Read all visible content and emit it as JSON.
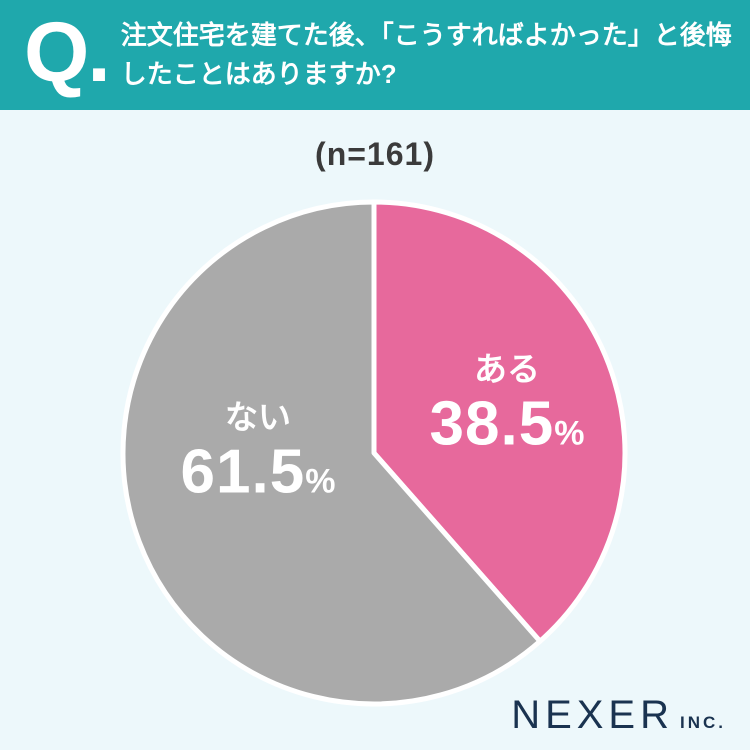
{
  "header": {
    "q_label": "Q.",
    "question_line1": "注文住宅を建てた後、「こうすればよかった」と後悔",
    "question_line2": "したことはありますか?"
  },
  "sample_label": "(n=161)",
  "chart_data": {
    "type": "pie",
    "title": "注文住宅を建てた後、「こうすればよかった」と後悔したことはありますか?",
    "subtitle": "(n=161)",
    "n": 161,
    "start_angle_deg": 0,
    "direction": "clockwise",
    "unit": "%",
    "slices": [
      {
        "label": "ある",
        "value": 38.5,
        "value_display": "38.5",
        "color": "#E7699C",
        "text_color": "#FFFFFF"
      },
      {
        "label": "ない",
        "value": 61.5,
        "value_display": "61.5",
        "color": "#AAAAAA",
        "text_color": "#FFFFFF"
      }
    ],
    "separator_color": "#FFFFFF",
    "legend_position": "inside"
  },
  "footer": {
    "brand": "NEXER",
    "brand_suffix": "INC."
  },
  "colors": {
    "header_bg": "#1FA8AC",
    "page_bg": "#EDF8FB",
    "header_text": "#FFFFFF",
    "n_label_text": "#3B3B3B",
    "brand_text": "#1A3350"
  }
}
